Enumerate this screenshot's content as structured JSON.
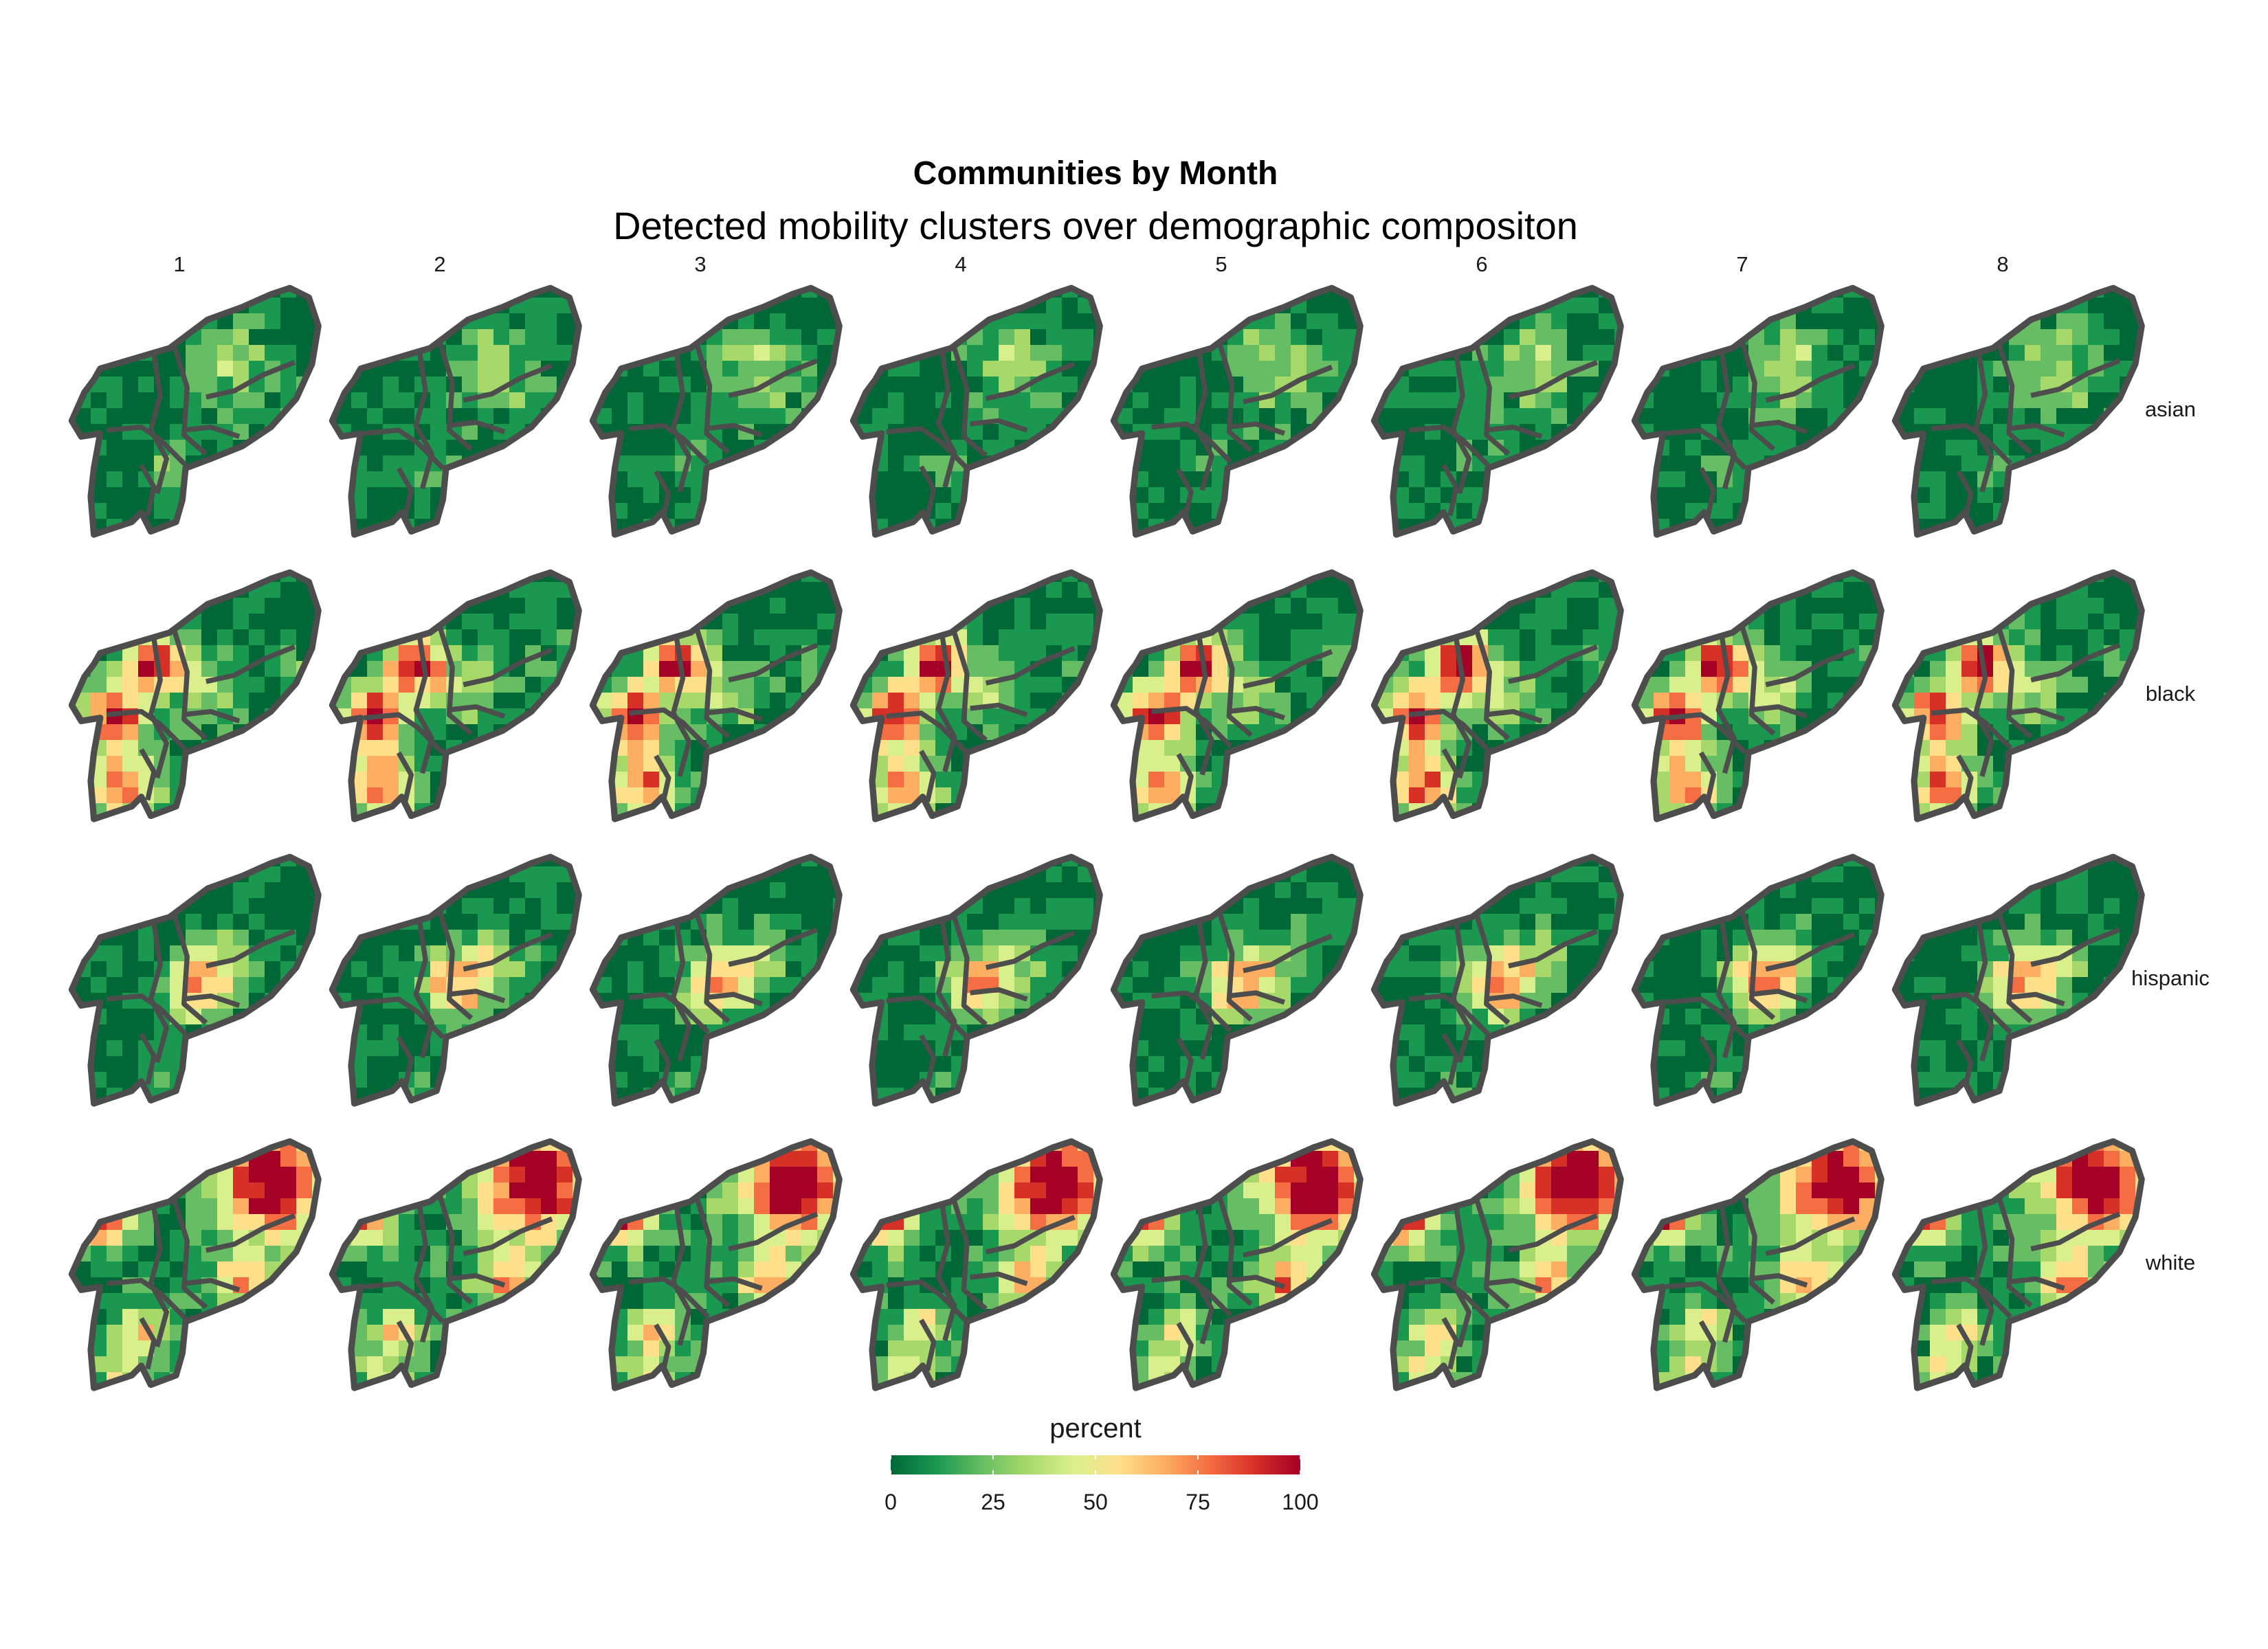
{
  "title": "Communities by Month",
  "subtitle": "Detected mobility clusters over demographic compositon",
  "columns": [
    "1",
    "2",
    "3",
    "4",
    "5",
    "6",
    "7",
    "8"
  ],
  "rows": [
    "asian",
    "black",
    "hispanic",
    "white"
  ],
  "legend": {
    "title": "percent",
    "ticks": [
      "0",
      "25",
      "50",
      "75",
      "100"
    ],
    "range": [
      0,
      100
    ],
    "colors": [
      "#006837",
      "#1a9850",
      "#66bd63",
      "#a6d96a",
      "#d9ef8b",
      "#fee08b",
      "#fdae61",
      "#f46d43",
      "#d73027",
      "#a50026"
    ]
  },
  "border_color": "#4d4d4d"
}
